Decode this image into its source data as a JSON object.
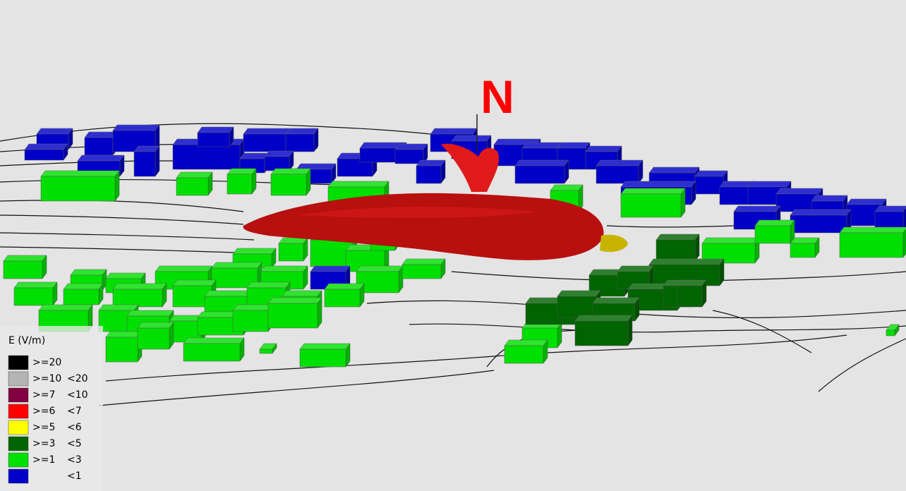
{
  "compass": {
    "label": "N"
  },
  "legend": {
    "title": "E (V/m)",
    "items": [
      {
        "lower": ">=20",
        "color": "#000000"
      },
      {
        "lower": ">=10",
        "upper": "<20",
        "color": "#b4b4b4"
      },
      {
        "lower": ">=7",
        "upper": "<10",
        "color": "#800040"
      },
      {
        "lower": ">=6",
        "upper": "<7",
        "color": "#ff0000"
      },
      {
        "lower": ">=5",
        "upper": "<6",
        "color": "#ffff00"
      },
      {
        "lower": ">=3",
        "upper": "<5",
        "color": "#006400"
      },
      {
        "lower": ">=1",
        "upper": "<3",
        "color": "#00e000"
      },
      {
        "upper": "<1",
        "color": "#0000c8"
      }
    ]
  }
}
